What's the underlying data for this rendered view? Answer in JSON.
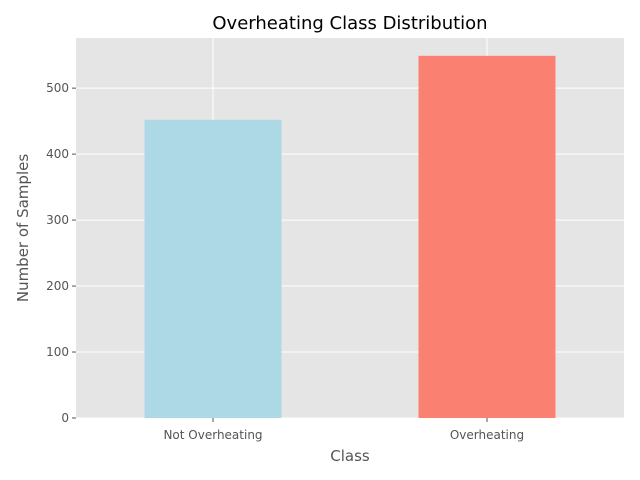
{
  "chart_data": {
    "type": "bar",
    "title": "Overheating Class Distribution",
    "xlabel": "Class",
    "ylabel": "Number of Samples",
    "categories": [
      "Not Overheating",
      "Overheating"
    ],
    "values": [
      452,
      549
    ],
    "bar_colors": [
      "#add8e6",
      "#fa8072"
    ],
    "ylim": [
      0,
      576
    ],
    "yticks": [
      0,
      100,
      200,
      300,
      400,
      500
    ],
    "grid": true,
    "style": "ggplot",
    "background_color": "#e5e5e5",
    "grid_color": "#ffffff"
  }
}
